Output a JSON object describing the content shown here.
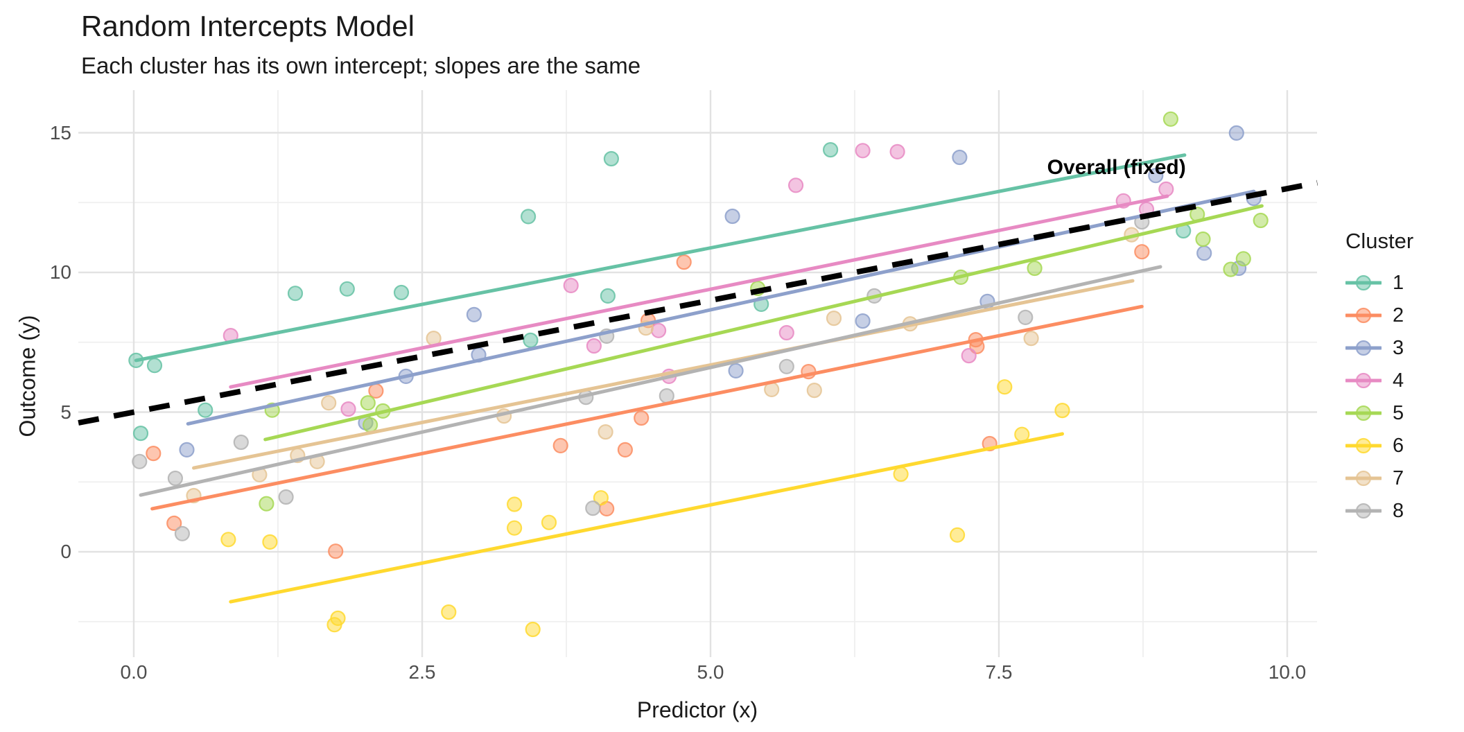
{
  "header": {
    "title": "Random Intercepts Model",
    "subtitle": "Each cluster has its own intercept; slopes are the same"
  },
  "legend": {
    "title": "Cluster",
    "items": [
      {
        "label": "1",
        "color": "#66C2A5"
      },
      {
        "label": "2",
        "color": "#FC8D62"
      },
      {
        "label": "3",
        "color": "#8DA0CB"
      },
      {
        "label": "4",
        "color": "#E78AC3"
      },
      {
        "label": "5",
        "color": "#A6D854"
      },
      {
        "label": "6",
        "color": "#FFD92F"
      },
      {
        "label": "7",
        "color": "#E5C494"
      },
      {
        "label": "8",
        "color": "#B3B3B3"
      }
    ]
  },
  "chart_data": {
    "type": "scatter",
    "title": "Random Intercepts Model",
    "subtitle": "Each cluster has its own intercept; slopes are the same",
    "xlabel": "Predictor (x)",
    "ylabel": "Outcome (y)",
    "xlim": [
      -0.48,
      10.26
    ],
    "ylim": [
      -3.77,
      16.53
    ],
    "grid": true,
    "legend_position": "right",
    "legend_title": "Cluster",
    "x_major_ticks": [
      0.0,
      2.5,
      5.0,
      7.5,
      10.0
    ],
    "x_tick_labels": [
      "0.0",
      "2.5",
      "5.0",
      "7.5",
      "10.0"
    ],
    "x_minor_ticks": [
      1.25,
      3.75,
      6.25,
      8.75
    ],
    "y_major_ticks": [
      0,
      5,
      10,
      15
    ],
    "y_tick_labels": [
      "0",
      "5",
      "10",
      "15"
    ],
    "y_minor_ticks": [
      -2.5,
      2.5,
      7.5,
      12.5
    ],
    "annotation": {
      "text": "Overall (fixed)",
      "x": 8.52,
      "y": 13.75
    },
    "overall_line": {
      "label": "Overall (fixed)",
      "slope": 0.8,
      "intercept": 5.0,
      "x1": -0.48,
      "x2": 10.26,
      "style": "dashed",
      "color": "#000000"
    },
    "series": [
      {
        "name": "1",
        "color": "#66C2A5",
        "line": {
          "x1": 0.02,
          "y1": 6.85,
          "x2": 9.11,
          "y2": 14.2
        },
        "points": [
          [
            0.02,
            6.85
          ],
          [
            0.18,
            6.67
          ],
          [
            0.06,
            4.24
          ],
          [
            0.62,
            5.07
          ],
          [
            1.4,
            9.25
          ],
          [
            1.85,
            9.41
          ],
          [
            2.32,
            9.28
          ],
          [
            3.42,
            12.0
          ],
          [
            3.44,
            7.57
          ],
          [
            4.11,
            9.16
          ],
          [
            4.14,
            14.07
          ],
          [
            5.44,
            8.86
          ],
          [
            6.04,
            14.39
          ],
          [
            9.1,
            11.49
          ]
        ]
      },
      {
        "name": "2",
        "color": "#FC8D62",
        "line": {
          "x1": 0.16,
          "y1": 1.54,
          "x2": 8.74,
          "y2": 8.78
        },
        "points": [
          [
            0.17,
            3.52
          ],
          [
            0.35,
            1.02
          ],
          [
            1.75,
            0.02
          ],
          [
            2.1,
            5.76
          ],
          [
            3.7,
            3.8
          ],
          [
            4.1,
            1.54
          ],
          [
            4.26,
            3.65
          ],
          [
            4.4,
            4.79
          ],
          [
            4.46,
            8.28
          ],
          [
            4.77,
            10.37
          ],
          [
            5.85,
            6.45
          ],
          [
            7.3,
            7.59
          ],
          [
            7.31,
            7.35
          ],
          [
            7.42,
            3.87
          ],
          [
            8.74,
            10.74
          ]
        ]
      },
      {
        "name": "3",
        "color": "#8DA0CB",
        "line": {
          "x1": 0.47,
          "y1": 4.58,
          "x2": 9.71,
          "y2": 12.9
        },
        "points": [
          [
            0.46,
            3.65
          ],
          [
            2.01,
            4.62
          ],
          [
            2.36,
            6.28
          ],
          [
            2.95,
            8.49
          ],
          [
            2.99,
            7.05
          ],
          [
            5.19,
            12.01
          ],
          [
            5.22,
            6.48
          ],
          [
            6.32,
            8.26
          ],
          [
            7.16,
            14.12
          ],
          [
            7.4,
            8.96
          ],
          [
            8.86,
            13.47
          ],
          [
            9.28,
            10.69
          ],
          [
            9.56,
            14.99
          ],
          [
            9.58,
            10.15
          ],
          [
            9.71,
            12.65
          ]
        ]
      },
      {
        "name": "4",
        "color": "#E78AC3",
        "line": {
          "x1": 0.84,
          "y1": 5.9,
          "x2": 8.96,
          "y2": 12.73
        },
        "points": [
          [
            0.84,
            7.74
          ],
          [
            1.86,
            5.11
          ],
          [
            3.79,
            9.53
          ],
          [
            3.99,
            7.37
          ],
          [
            4.55,
            7.92
          ],
          [
            4.64,
            6.28
          ],
          [
            5.66,
            7.84
          ],
          [
            5.74,
            13.12
          ],
          [
            6.32,
            14.36
          ],
          [
            6.62,
            14.32
          ],
          [
            7.24,
            7.02
          ],
          [
            8.58,
            12.56
          ],
          [
            8.78,
            12.26
          ],
          [
            8.95,
            12.98
          ]
        ]
      },
      {
        "name": "5",
        "color": "#A6D854",
        "line": {
          "x1": 1.14,
          "y1": 4.02,
          "x2": 9.78,
          "y2": 12.38
        },
        "points": [
          [
            1.2,
            5.07
          ],
          [
            1.15,
            1.72
          ],
          [
            2.03,
            5.33
          ],
          [
            2.16,
            5.04
          ],
          [
            2.05,
            4.54
          ],
          [
            5.41,
            9.43
          ],
          [
            7.17,
            9.83
          ],
          [
            7.81,
            10.15
          ],
          [
            8.99,
            15.49
          ],
          [
            9.22,
            12.08
          ],
          [
            9.27,
            11.19
          ],
          [
            9.51,
            10.11
          ],
          [
            9.62,
            10.49
          ],
          [
            9.77,
            11.86
          ]
        ]
      },
      {
        "name": "6",
        "color": "#FFD92F",
        "line": {
          "x1": 0.84,
          "y1": -1.79,
          "x2": 8.05,
          "y2": 4.22
        },
        "points": [
          [
            0.82,
            0.44
          ],
          [
            1.18,
            0.35
          ],
          [
            1.74,
            -2.61
          ],
          [
            1.77,
            -2.38
          ],
          [
            2.73,
            -2.16
          ],
          [
            3.3,
            1.7
          ],
          [
            3.3,
            0.85
          ],
          [
            3.46,
            -2.78
          ],
          [
            3.6,
            1.05
          ],
          [
            4.05,
            1.93
          ],
          [
            6.65,
            2.78
          ],
          [
            7.14,
            0.6
          ],
          [
            7.55,
            5.9
          ],
          [
            7.7,
            4.2
          ],
          [
            8.05,
            5.06
          ]
        ]
      },
      {
        "name": "7",
        "color": "#E5C494",
        "line": {
          "x1": 0.52,
          "y1": 3.0,
          "x2": 8.66,
          "y2": 9.7
        },
        "points": [
          [
            0.52,
            2.01
          ],
          [
            1.09,
            2.76
          ],
          [
            1.42,
            3.45
          ],
          [
            1.59,
            3.23
          ],
          [
            1.69,
            5.33
          ],
          [
            2.6,
            7.64
          ],
          [
            3.21,
            4.86
          ],
          [
            4.09,
            4.29
          ],
          [
            4.44,
            8.01
          ],
          [
            5.53,
            5.81
          ],
          [
            5.9,
            5.78
          ],
          [
            6.07,
            8.36
          ],
          [
            6.73,
            8.16
          ],
          [
            7.78,
            7.64
          ],
          [
            8.65,
            11.35
          ]
        ]
      },
      {
        "name": "8",
        "color": "#B3B3B3",
        "line": {
          "x1": 0.06,
          "y1": 2.03,
          "x2": 8.9,
          "y2": 10.2
        },
        "points": [
          [
            0.05,
            3.23
          ],
          [
            0.36,
            2.63
          ],
          [
            0.42,
            0.65
          ],
          [
            0.93,
            3.92
          ],
          [
            1.32,
            1.96
          ],
          [
            3.92,
            5.53
          ],
          [
            3.98,
            1.56
          ],
          [
            4.1,
            7.72
          ],
          [
            4.62,
            5.58
          ],
          [
            5.66,
            6.63
          ],
          [
            6.42,
            9.16
          ],
          [
            7.73,
            8.39
          ],
          [
            8.74,
            11.81
          ]
        ]
      }
    ],
    "colors": {
      "grid_major": "#e2e2e2",
      "grid_minor": "#efefef",
      "tick_text": "#4d4d4d",
      "text": "#1a1a1a"
    }
  }
}
